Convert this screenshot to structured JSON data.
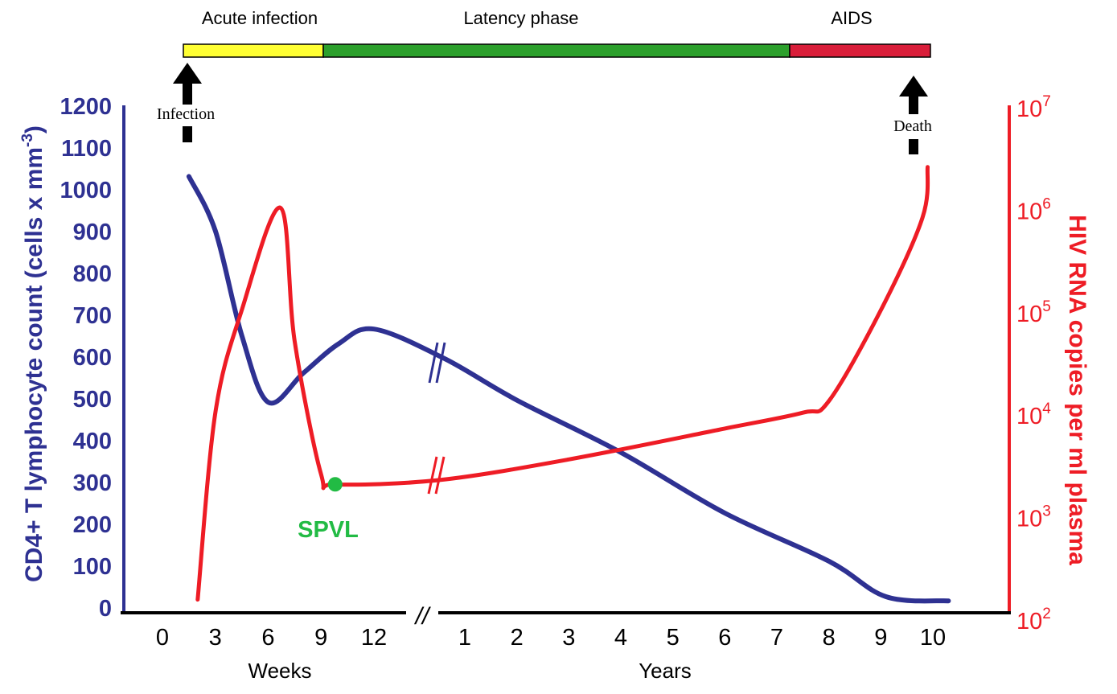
{
  "chart_data": {
    "type": "line",
    "phases": [
      {
        "label": "Acute infection",
        "color": "#ffff33",
        "x_start": "0 weeks",
        "x_end": "9 weeks"
      },
      {
        "label": "Latency phase",
        "color": "#2ca02c",
        "x_start": "9 weeks",
        "x_end": "7.5 years"
      },
      {
        "label": "AIDS",
        "color": "#d91e3a",
        "x_start": "7.5 years",
        "x_end": "10 years"
      }
    ],
    "annotations": {
      "infection": "Infection",
      "death": "Death",
      "spvl": "SPVL"
    },
    "x_axis": {
      "weeks_label": "Weeks",
      "years_label": "Years",
      "break_mark": "//",
      "week_ticks": [
        "0",
        "3",
        "6",
        "9",
        "12"
      ],
      "year_ticks": [
        "1",
        "2",
        "3",
        "4",
        "5",
        "6",
        "7",
        "8",
        "9",
        "10"
      ]
    },
    "y_left": {
      "label_main": "CD4+ T lymphocyte count  (cells x mm",
      "label_sup": "-3",
      "label_close": ")",
      "ticks": [
        "0",
        "100",
        "200",
        "300",
        "400",
        "500",
        "600",
        "700",
        "800",
        "900",
        "1000",
        "1100",
        "1200"
      ],
      "range": [
        0,
        1200
      ],
      "color": "#2e3192"
    },
    "y_right": {
      "label": "HIV RNA copies per ml plasma",
      "scale": "log",
      "range": [
        100,
        10000000
      ],
      "ticks": [
        {
          "base": "10",
          "exp": "2"
        },
        {
          "base": "10",
          "exp": "3"
        },
        {
          "base": "10",
          "exp": "4"
        },
        {
          "base": "10",
          "exp": "5"
        },
        {
          "base": "10",
          "exp": "6"
        },
        {
          "base": "10",
          "exp": "7"
        }
      ],
      "color": "#ee1c25"
    },
    "series": [
      {
        "name": "CD4+ T lymphocyte count",
        "axis": "left",
        "color": "#2e3192",
        "points": [
          {
            "period": "weeks",
            "x": 1.5,
            "y": 1030
          },
          {
            "period": "weeks",
            "x": 3,
            "y": 900
          },
          {
            "period": "weeks",
            "x": 4.5,
            "y": 650
          },
          {
            "period": "weeks",
            "x": 6,
            "y": 490
          },
          {
            "period": "weeks",
            "x": 8,
            "y": 560
          },
          {
            "period": "weeks",
            "x": 10,
            "y": 630
          },
          {
            "period": "weeks",
            "x": 12,
            "y": 665
          },
          {
            "period": "years",
            "x": 0.6,
            "y": 595
          },
          {
            "period": "years",
            "x": 2,
            "y": 495
          },
          {
            "period": "years",
            "x": 4,
            "y": 370
          },
          {
            "period": "years",
            "x": 6,
            "y": 225
          },
          {
            "period": "years",
            "x": 8,
            "y": 110
          },
          {
            "period": "years",
            "x": 9.1,
            "y": 25
          },
          {
            "period": "years",
            "x": 10.3,
            "y": 15
          }
        ]
      },
      {
        "name": "HIV RNA copies per ml plasma",
        "axis": "right",
        "color": "#ee1c25",
        "points": [
          {
            "period": "weeks",
            "x": 2,
            "y": 150
          },
          {
            "period": "weeks",
            "x": 3,
            "y": 10000
          },
          {
            "period": "weeks",
            "x": 4.5,
            "y": 100000
          },
          {
            "period": "weeks",
            "x": 6.7,
            "y": 1000000
          },
          {
            "period": "weeks",
            "x": 7.5,
            "y": 50000
          },
          {
            "period": "weeks",
            "x": 9,
            "y": 2500
          },
          {
            "period": "weeks",
            "x": 9.8,
            "y": 2000
          },
          {
            "period": "years",
            "x": 0.5,
            "y": 2200
          },
          {
            "period": "years",
            "x": 3,
            "y": 3500
          },
          {
            "period": "years",
            "x": 6,
            "y": 7000
          },
          {
            "period": "years",
            "x": 7.5,
            "y": 10000
          },
          {
            "period": "years",
            "x": 8,
            "y": 13000
          },
          {
            "period": "years",
            "x": 9,
            "y": 100000
          },
          {
            "period": "years",
            "x": 9.8,
            "y": 800000
          },
          {
            "period": "years",
            "x": 9.9,
            "y": 2500000
          }
        ]
      }
    ],
    "highlight_point": {
      "label": "SPVL",
      "period": "weeks",
      "x": 9.8,
      "y": 2000,
      "color": "#22bb44"
    }
  }
}
